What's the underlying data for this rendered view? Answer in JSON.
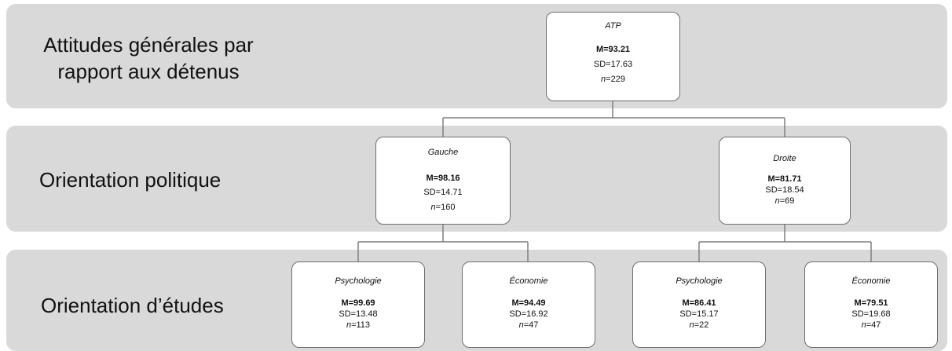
{
  "levels": [
    {
      "label_line1": "Attitudes générales par",
      "label_line2": "rapport aux détenus"
    },
    {
      "label": "Orientation politique"
    },
    {
      "label": "Orientation d’études"
    }
  ],
  "nodes": {
    "root": {
      "name": "ATP",
      "mean": "M=93.21",
      "sd": "SD=17.63",
      "n_prefix": "n",
      "n_value": "=229"
    },
    "gauche": {
      "name": "Gauche",
      "mean": "M=98.16",
      "sd": "SD=14.71",
      "n_prefix": "n",
      "n_value": "=160"
    },
    "droite": {
      "name": "Droite",
      "mean": "M=81.71",
      "sd": "SD=18.54",
      "n_prefix": "n",
      "n_value": "=69"
    },
    "gauche_psy": {
      "name": "Psychologie",
      "mean": "M=99.69",
      "sd": "SD=13.48",
      "n_prefix": "n",
      "n_value": "=113"
    },
    "gauche_eco": {
      "name": "Économie",
      "mean": "M=94.49",
      "sd": "SD=16.92",
      "n_prefix": "n",
      "n_value": "=47"
    },
    "droite_psy": {
      "name": "Psychologie",
      "mean": "M=86.41",
      "sd": "SD=15.17",
      "n_prefix": "n",
      "n_value": "=22"
    },
    "droite_eco": {
      "name": "Économie",
      "mean": "M=79.51",
      "sd": "SD=19.68",
      "n_prefix": "n",
      "n_value": "=47"
    }
  }
}
